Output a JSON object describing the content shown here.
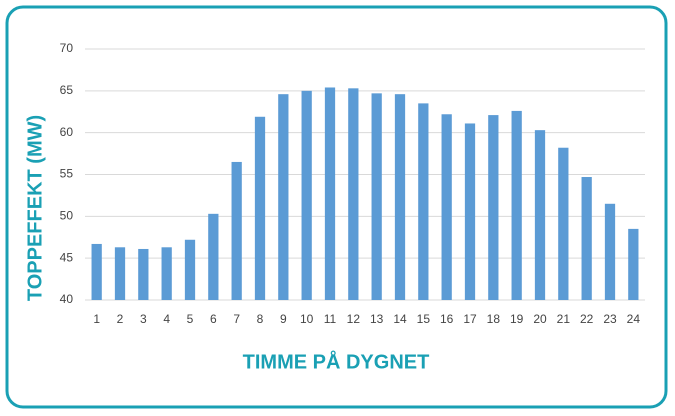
{
  "chart_data": {
    "type": "bar",
    "x_label": "TIMME PÅ DYGNET",
    "y_label": "TOPPEFFEKT (MW)",
    "categories": [
      "1",
      "2",
      "3",
      "4",
      "5",
      "6",
      "7",
      "8",
      "9",
      "10",
      "11",
      "12",
      "13",
      "14",
      "15",
      "16",
      "17",
      "18",
      "19",
      "20",
      "21",
      "22",
      "23",
      "24"
    ],
    "values": [
      46.7,
      46.3,
      46.1,
      46.3,
      47.2,
      50.3,
      56.5,
      61.9,
      64.6,
      65.0,
      65.4,
      65.3,
      64.7,
      64.6,
      63.5,
      62.2,
      61.1,
      62.1,
      62.6,
      60.3,
      58.2,
      54.7,
      51.5,
      48.5
    ],
    "color": "#5b9bd5",
    "ylim": [
      40,
      70
    ],
    "yticks": [
      40,
      45,
      50,
      55,
      60,
      65,
      70
    ],
    "grid": true
  }
}
